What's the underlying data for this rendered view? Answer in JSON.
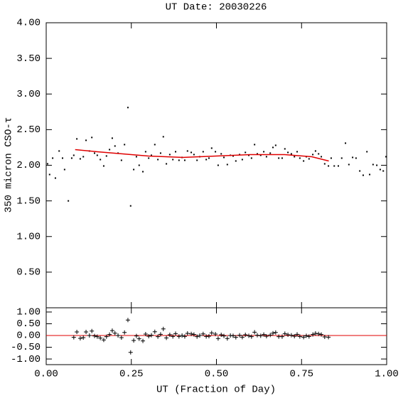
{
  "chart_data": [
    {
      "type": "scatter",
      "title": "UT Date: 20030226",
      "y_label": "350 micron CSO-τ",
      "xlim": [
        0,
        1
      ],
      "xticks": [
        0,
        0.25,
        0.5,
        0.75,
        1
      ],
      "ylim": [
        0,
        4
      ],
      "yticks": [
        {
          "value": 0.5,
          "label": "0.50"
        },
        {
          "value": 1,
          "label": "1.00"
        },
        {
          "value": 1.5,
          "label": "1.50"
        },
        {
          "value": 2,
          "label": "2.00"
        },
        {
          "value": 2.5,
          "label": "2.50"
        },
        {
          "value": 3,
          "label": "3.00"
        },
        {
          "value": 3.5,
          "label": "3.50"
        },
        {
          "value": 4,
          "label": "4.00"
        }
      ],
      "series": [
        {
          "color": "#000000",
          "marker": "dot",
          "x": [
            0.004,
            0.01,
            0.019,
            0.027,
            0.038,
            0.048,
            0.054,
            0.065,
            0.075,
            0.081,
            0.09,
            0.1,
            0.109,
            0.117,
            0.127,
            0.134,
            0.142,
            0.15,
            0.159,
            0.169,
            0.177,
            0.186,
            0.194,
            0.202,
            0.211,
            0.221,
            0.23,
            0.24,
            0.248,
            0.257,
            0.265,
            0.273,
            0.284,
            0.292,
            0.301,
            0.309,
            0.319,
            0.328,
            0.336,
            0.344,
            0.353,
            0.363,
            0.372,
            0.38,
            0.39,
            0.399,
            0.407,
            0.415,
            0.426,
            0.434,
            0.443,
            0.451,
            0.461,
            0.47,
            0.478,
            0.486,
            0.497,
            0.505,
            0.514,
            0.522,
            0.532,
            0.541,
            0.549,
            0.557,
            0.568,
            0.576,
            0.585,
            0.595,
            0.603,
            0.612,
            0.62,
            0.63,
            0.639,
            0.647,
            0.658,
            0.666,
            0.674,
            0.683,
            0.693,
            0.701,
            0.71,
            0.72,
            0.729,
            0.737,
            0.745,
            0.756,
            0.764,
            0.772,
            0.783,
            0.791,
            0.8,
            0.808,
            0.818,
            0.829,
            0.837,
            0.846,
            0.858,
            0.868,
            0.879,
            0.889,
            0.9,
            0.91,
            0.921,
            0.931,
            0.942,
            0.95,
            0.96,
            0.971,
            0.981,
            0.99,
            0.998
          ],
          "values": [
            2.02,
            1.87,
            2.1,
            1.82,
            2.2,
            2.1,
            1.94,
            1.5,
            2.1,
            2.14,
            2.37,
            2.09,
            2.12,
            2.35,
            2.2,
            2.39,
            2.17,
            2.14,
            2.08,
            1.99,
            2.13,
            2.22,
            2.38,
            2.27,
            2.17,
            2.07,
            2.29,
            2.81,
            1.43,
            1.94,
            2.12,
            2.0,
            1.91,
            2.19,
            2.1,
            2.14,
            2.29,
            2.08,
            2.17,
            2.4,
            2.02,
            2.15,
            2.08,
            2.19,
            2.07,
            2.11,
            2.07,
            2.2,
            2.18,
            2.15,
            2.07,
            2.12,
            2.19,
            2.08,
            2.1,
            2.24,
            2.19,
            2.0,
            2.16,
            2.11,
            2.01,
            2.14,
            2.13,
            2.06,
            2.15,
            2.08,
            2.18,
            2.14,
            2.1,
            2.29,
            2.16,
            2.14,
            2.19,
            2.12,
            2.17,
            2.25,
            2.28,
            2.1,
            2.1,
            2.23,
            2.18,
            2.16,
            2.12,
            2.19,
            2.1,
            2.06,
            2.12,
            2.09,
            2.15,
            2.2,
            2.16,
            2.12,
            2.02,
            1.99,
            2.1,
            1.99,
            1.99,
            2.1,
            2.31,
            2.01,
            2.11,
            2.1,
            1.92,
            1.86,
            2.19,
            1.87,
            2.01,
            2.0,
            1.94,
            1.92,
            2.12
          ]
        },
        {
          "color": "#e00000",
          "marker": "line",
          "x": [
            0.085,
            0.15,
            0.2,
            0.3,
            0.4,
            0.5,
            0.6,
            0.7,
            0.78,
            0.83
          ],
          "values": [
            2.22,
            2.19,
            2.17,
            2.13,
            2.11,
            2.13,
            2.15,
            2.15,
            2.12,
            2.06
          ]
        }
      ]
    },
    {
      "type": "scatter",
      "x_label": "UT (Fraction of Day)",
      "xlim": [
        0,
        1
      ],
      "xticks": [
        {
          "value": 0,
          "label": "0.00"
        },
        {
          "value": 0.25,
          "label": "0.25"
        },
        {
          "value": 0.5,
          "label": "0.50"
        },
        {
          "value": 0.75,
          "label": "0.75"
        },
        {
          "value": 1,
          "label": "1.00"
        }
      ],
      "ylim": [
        -1.24,
        1.18
      ],
      "yticks": [
        {
          "value": -1,
          "label": "-1.00"
        },
        {
          "value": -0.5,
          "label": "-0.50"
        },
        {
          "value": 0,
          "label": "0.00"
        },
        {
          "value": 0.5,
          "label": "0.50"
        },
        {
          "value": 1,
          "label": "1.00"
        }
      ],
      "reference_line": {
        "value": 0,
        "color": "#e00000"
      },
      "series": [
        {
          "color": "#000000",
          "marker": "plus",
          "x": [
            0.081,
            0.09,
            0.1,
            0.109,
            0.117,
            0.127,
            0.134,
            0.142,
            0.15,
            0.159,
            0.169,
            0.177,
            0.186,
            0.194,
            0.202,
            0.211,
            0.221,
            0.23,
            0.24,
            0.248,
            0.257,
            0.265,
            0.273,
            0.284,
            0.292,
            0.301,
            0.309,
            0.319,
            0.328,
            0.336,
            0.344,
            0.353,
            0.363,
            0.372,
            0.38,
            0.39,
            0.399,
            0.407,
            0.415,
            0.426,
            0.434,
            0.443,
            0.451,
            0.461,
            0.47,
            0.478,
            0.486,
            0.497,
            0.505,
            0.514,
            0.522,
            0.532,
            0.541,
            0.549,
            0.557,
            0.568,
            0.576,
            0.585,
            0.595,
            0.603,
            0.612,
            0.62,
            0.63,
            0.639,
            0.647,
            0.658,
            0.666,
            0.674,
            0.683,
            0.693,
            0.701,
            0.71,
            0.72,
            0.729,
            0.737,
            0.745,
            0.756,
            0.764,
            0.772,
            0.783,
            0.791,
            0.8,
            0.808,
            0.818,
            0.829
          ],
          "values": [
            -0.08,
            0.15,
            -0.12,
            -0.09,
            0.15,
            0,
            0.19,
            -0.02,
            -0.05,
            -0.11,
            -0.19,
            -0.05,
            0.04,
            0.21,
            0.1,
            0,
            -0.09,
            0.13,
            0.66,
            -0.72,
            -0.21,
            -0.02,
            -0.14,
            -0.23,
            0.06,
            -0.03,
            0.01,
            0.16,
            -0.05,
            0.05,
            0.28,
            -0.1,
            0.03,
            -0.04,
            0.08,
            -0.04,
            0,
            -0.04,
            0.09,
            0.07,
            0.04,
            -0.05,
            0,
            0.07,
            -0.04,
            -0.03,
            0.11,
            0.06,
            -0.13,
            0.03,
            -0.02,
            -0.13,
            0,
            -0.01,
            -0.08,
            0.01,
            -0.07,
            0.03,
            -0.01,
            -0.05,
            0.14,
            0.01,
            -0.01,
            0.04,
            -0.03,
            0.02,
            0.1,
            0.13,
            -0.05,
            -0.05,
            0.08,
            0.03,
            0.01,
            -0.03,
            0.05,
            -0.04,
            -0.07,
            -0.01,
            -0.04,
            0.04,
            0.09,
            0.07,
            0.04,
            -0.06,
            -0.07
          ]
        }
      ]
    }
  ]
}
